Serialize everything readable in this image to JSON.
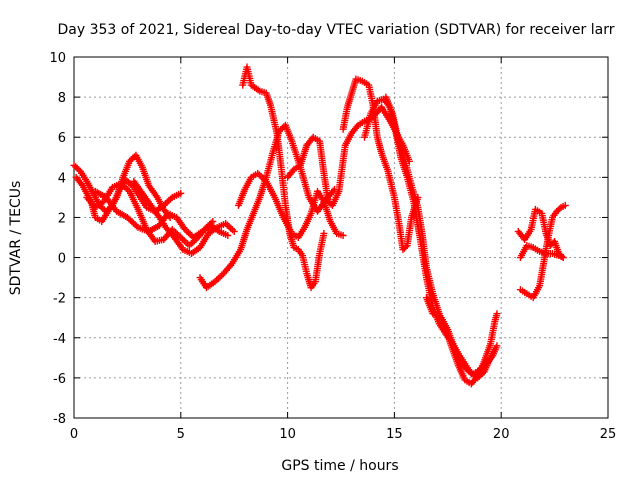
{
  "chart_data": {
    "type": "scatter",
    "title": "Day 353 of 2021, Sidereal Day-to-day VTEC variation (SDTVAR) for receiver larr",
    "xlabel": "GPS time / hours",
    "ylabel": "SDTVAR / TECUs",
    "xlim": [
      0,
      25
    ],
    "ylim": [
      -8,
      10
    ],
    "xticks": [
      0,
      5,
      10,
      15,
      20,
      25
    ],
    "yticks": [
      -8,
      -6,
      -4,
      -2,
      0,
      2,
      4,
      6,
      8,
      10
    ],
    "grid": true,
    "marker": "+",
    "color": "#ff0000",
    "series": [
      {
        "name": "track-1",
        "points": [
          [
            0.0,
            4.6
          ],
          [
            0.3,
            4.3
          ],
          [
            0.6,
            3.8
          ],
          [
            0.9,
            3.2
          ],
          [
            1.2,
            2.6
          ],
          [
            1.5,
            2.3
          ],
          [
            1.8,
            2.6
          ],
          [
            2.1,
            3.3
          ],
          [
            2.4,
            3.9
          ],
          [
            2.8,
            3.5
          ],
          [
            3.1,
            3.0
          ],
          [
            3.4,
            2.5
          ],
          [
            3.8,
            2.3
          ],
          [
            4.2,
            2.6
          ],
          [
            4.6,
            3.0
          ],
          [
            5.0,
            3.2
          ]
        ]
      },
      {
        "name": "track-2",
        "points": [
          [
            0.1,
            4.0
          ],
          [
            0.4,
            3.6
          ],
          [
            0.8,
            2.8
          ],
          [
            1.0,
            2.0
          ],
          [
            1.3,
            1.8
          ],
          [
            1.6,
            2.3
          ],
          [
            2.0,
            3.0
          ],
          [
            2.3,
            4.0
          ],
          [
            2.6,
            4.8
          ],
          [
            2.9,
            5.1
          ],
          [
            3.2,
            4.5
          ],
          [
            3.5,
            3.6
          ],
          [
            3.9,
            3.0
          ],
          [
            4.2,
            2.4
          ],
          [
            4.5,
            2.0
          ]
        ]
      },
      {
        "name": "track-3",
        "points": [
          [
            0.6,
            3.0
          ],
          [
            1.0,
            2.5
          ],
          [
            1.4,
            2.8
          ],
          [
            1.8,
            3.5
          ],
          [
            2.2,
            3.7
          ],
          [
            2.6,
            3.3
          ],
          [
            3.0,
            2.4
          ],
          [
            3.4,
            1.4
          ],
          [
            3.8,
            0.8
          ],
          [
            4.2,
            0.9
          ],
          [
            4.6,
            1.4
          ],
          [
            5.0,
            1.0
          ],
          [
            5.4,
            0.6
          ],
          [
            5.8,
            1.0
          ],
          [
            6.2,
            1.5
          ],
          [
            6.5,
            1.8
          ]
        ]
      },
      {
        "name": "track-4",
        "points": [
          [
            1.0,
            3.3
          ],
          [
            1.5,
            3.0
          ],
          [
            2.0,
            2.3
          ],
          [
            2.5,
            2.0
          ],
          [
            3.0,
            1.5
          ],
          [
            3.5,
            1.3
          ],
          [
            4.0,
            1.6
          ],
          [
            4.4,
            2.2
          ],
          [
            4.8,
            2.0
          ],
          [
            5.2,
            1.4
          ],
          [
            5.6,
            1.0
          ],
          [
            6.0,
            1.3
          ],
          [
            6.4,
            1.6
          ],
          [
            6.8,
            1.3
          ],
          [
            7.2,
            1.1
          ]
        ]
      },
      {
        "name": "track-5",
        "points": [
          [
            2.8,
            3.8
          ],
          [
            3.2,
            3.2
          ],
          [
            3.6,
            2.6
          ],
          [
            4.0,
            2.0
          ],
          [
            4.3,
            1.5
          ],
          [
            4.7,
            1.0
          ],
          [
            5.1,
            0.4
          ],
          [
            5.5,
            0.2
          ],
          [
            5.9,
            0.5
          ],
          [
            6.3,
            1.2
          ],
          [
            6.7,
            1.5
          ],
          [
            7.1,
            1.7
          ],
          [
            7.5,
            1.3
          ]
        ]
      },
      {
        "name": "track-6",
        "points": [
          [
            5.9,
            -1.0
          ],
          [
            6.2,
            -1.5
          ],
          [
            6.6,
            -1.2
          ],
          [
            7.0,
            -0.8
          ],
          [
            7.4,
            -0.3
          ],
          [
            7.8,
            0.4
          ],
          [
            8.1,
            1.4
          ],
          [
            8.4,
            2.2
          ],
          [
            8.7,
            3.0
          ],
          [
            9.0,
            4.0
          ],
          [
            9.3,
            5.2
          ],
          [
            9.6,
            6.3
          ],
          [
            9.9,
            6.6
          ],
          [
            10.2,
            5.8
          ],
          [
            10.6,
            4.5
          ],
          [
            11.0,
            3.0
          ],
          [
            11.4,
            2.3
          ],
          [
            11.8,
            2.9
          ],
          [
            12.2,
            3.4
          ]
        ]
      },
      {
        "name": "track-7",
        "points": [
          [
            7.9,
            8.6
          ],
          [
            8.1,
            9.5
          ],
          [
            8.3,
            8.6
          ],
          [
            8.7,
            8.3
          ],
          [
            9.0,
            8.2
          ],
          [
            9.2,
            7.6
          ],
          [
            9.5,
            6.2
          ],
          [
            9.7,
            4.5
          ],
          [
            9.9,
            2.6
          ],
          [
            10.1,
            1.2
          ],
          [
            10.3,
            0.5
          ],
          [
            10.5,
            0.4
          ],
          [
            10.7,
            0.1
          ],
          [
            10.9,
            -0.8
          ],
          [
            11.1,
            -1.5
          ],
          [
            11.3,
            -1.2
          ],
          [
            11.5,
            0.2
          ],
          [
            11.7,
            1.2
          ]
        ]
      },
      {
        "name": "track-8",
        "points": [
          [
            7.7,
            2.6
          ],
          [
            8.0,
            3.4
          ],
          [
            8.3,
            4.0
          ],
          [
            8.6,
            4.2
          ],
          [
            9.0,
            3.8
          ],
          [
            9.4,
            3.0
          ],
          [
            9.8,
            2.0
          ],
          [
            10.2,
            1.2
          ],
          [
            10.5,
            1.0
          ],
          [
            10.8,
            1.5
          ],
          [
            11.1,
            2.2
          ],
          [
            11.4,
            3.3
          ],
          [
            11.7,
            2.8
          ],
          [
            12.0,
            1.8
          ],
          [
            12.3,
            1.2
          ],
          [
            12.6,
            1.1
          ]
        ]
      },
      {
        "name": "track-9",
        "points": [
          [
            10.0,
            4.0
          ],
          [
            10.3,
            4.4
          ],
          [
            10.6,
            4.6
          ],
          [
            10.9,
            5.6
          ],
          [
            11.2,
            6.0
          ],
          [
            11.5,
            5.8
          ],
          [
            11.7,
            4.2
          ],
          [
            11.9,
            2.8
          ],
          [
            12.1,
            2.6
          ],
          [
            12.4,
            3.3
          ],
          [
            12.7,
            5.6
          ],
          [
            13.0,
            6.2
          ],
          [
            13.3,
            6.6
          ],
          [
            13.6,
            6.8
          ],
          [
            14.0,
            7.0
          ],
          [
            14.4,
            7.5
          ],
          [
            14.8,
            6.8
          ],
          [
            15.1,
            6.2
          ],
          [
            15.4,
            5.6
          ],
          [
            15.7,
            4.8
          ]
        ]
      },
      {
        "name": "track-10",
        "points": [
          [
            12.6,
            6.4
          ],
          [
            12.8,
            7.5
          ],
          [
            13.0,
            8.2
          ],
          [
            13.2,
            8.9
          ],
          [
            13.5,
            8.8
          ],
          [
            13.8,
            8.6
          ],
          [
            14.0,
            7.6
          ],
          [
            14.2,
            6.0
          ],
          [
            14.4,
            5.2
          ],
          [
            14.7,
            4.3
          ],
          [
            15.0,
            3.0
          ],
          [
            15.2,
            1.8
          ],
          [
            15.4,
            0.4
          ],
          [
            15.6,
            0.6
          ],
          [
            15.8,
            2.0
          ],
          [
            16.1,
            3.0
          ]
        ]
      },
      {
        "name": "track-11",
        "points": [
          [
            13.6,
            6.0
          ],
          [
            13.9,
            7.2
          ],
          [
            14.2,
            7.8
          ],
          [
            14.5,
            7.9
          ],
          [
            14.8,
            7.5
          ],
          [
            15.0,
            6.6
          ],
          [
            15.3,
            5.0
          ],
          [
            15.6,
            4.0
          ],
          [
            15.9,
            2.8
          ],
          [
            16.2,
            1.0
          ],
          [
            16.5,
            -1.0
          ],
          [
            16.8,
            -2.5
          ],
          [
            17.1,
            -3.3
          ],
          [
            17.4,
            -3.8
          ],
          [
            17.7,
            -4.2
          ],
          [
            18.0,
            -4.8
          ],
          [
            18.3,
            -5.3
          ],
          [
            18.6,
            -5.8
          ],
          [
            18.9,
            -6.0
          ],
          [
            19.2,
            -5.7
          ],
          [
            19.5,
            -5.0
          ],
          [
            19.7,
            -4.6
          ]
        ]
      },
      {
        "name": "track-12",
        "points": [
          [
            14.6,
            8.0
          ],
          [
            14.9,
            7.2
          ],
          [
            15.2,
            5.8
          ],
          [
            15.5,
            4.8
          ],
          [
            15.8,
            3.6
          ],
          [
            16.1,
            2.5
          ],
          [
            16.3,
            1.2
          ],
          [
            16.5,
            -0.5
          ],
          [
            16.8,
            -1.8
          ],
          [
            17.1,
            -2.8
          ],
          [
            17.4,
            -3.6
          ],
          [
            17.7,
            -4.5
          ],
          [
            18.0,
            -5.4
          ],
          [
            18.3,
            -6.1
          ],
          [
            18.6,
            -6.3
          ],
          [
            18.9,
            -5.9
          ],
          [
            19.2,
            -5.2
          ],
          [
            19.5,
            -4.3
          ],
          [
            19.7,
            -3.2
          ],
          [
            19.8,
            -2.8
          ]
        ]
      },
      {
        "name": "track-13",
        "points": [
          [
            16.5,
            -2.0
          ],
          [
            16.8,
            -2.8
          ],
          [
            17.2,
            -3.0
          ],
          [
            17.5,
            -3.6
          ],
          [
            17.8,
            -4.5
          ],
          [
            18.1,
            -5.2
          ],
          [
            18.4,
            -5.6
          ],
          [
            18.7,
            -5.8
          ],
          [
            19.0,
            -5.6
          ],
          [
            19.3,
            -5.3
          ],
          [
            19.6,
            -4.9
          ],
          [
            19.8,
            -4.4
          ]
        ]
      },
      {
        "name": "track-14",
        "points": [
          [
            20.8,
            1.3
          ],
          [
            21.1,
            0.9
          ],
          [
            21.4,
            1.4
          ],
          [
            21.6,
            2.4
          ],
          [
            21.9,
            2.2
          ],
          [
            22.1,
            1.2
          ],
          [
            22.3,
            0.6
          ],
          [
            22.5,
            0.8
          ],
          [
            22.7,
            0.2
          ],
          [
            22.9,
            0.0
          ]
        ]
      },
      {
        "name": "track-15",
        "points": [
          [
            20.9,
            -1.6
          ],
          [
            21.2,
            -1.8
          ],
          [
            21.5,
            -2.0
          ],
          [
            21.8,
            -1.4
          ],
          [
            22.0,
            -0.2
          ],
          [
            22.2,
            1.0
          ],
          [
            22.4,
            2.0
          ],
          [
            22.6,
            2.3
          ],
          [
            22.8,
            2.5
          ],
          [
            23.0,
            2.6
          ]
        ]
      },
      {
        "name": "track-16",
        "points": [
          [
            20.9,
            0.0
          ],
          [
            21.2,
            0.6
          ],
          [
            21.5,
            0.5
          ],
          [
            21.8,
            0.3
          ],
          [
            22.1,
            0.2
          ],
          [
            22.4,
            0.2
          ],
          [
            22.7,
            0.1
          ],
          [
            22.9,
            0.0
          ]
        ]
      }
    ]
  }
}
